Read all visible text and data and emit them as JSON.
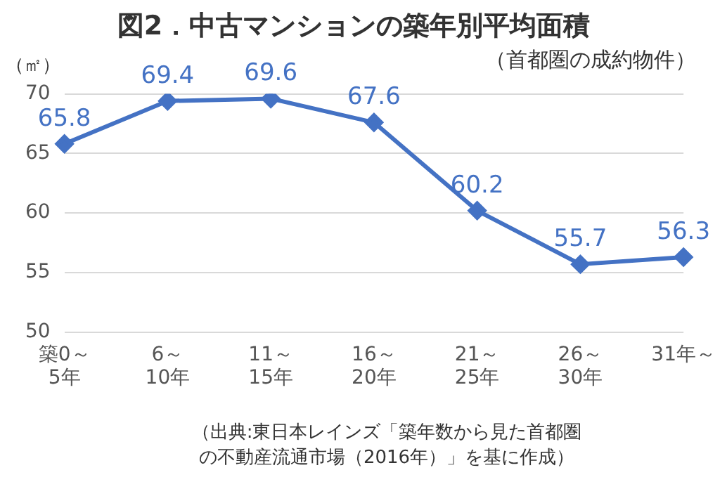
{
  "chart_data": {
    "type": "line",
    "title": "図2．中古マンションの築年別平均面積",
    "subtitle": "（首都圏の成約物件）",
    "ylabel": "（㎡）",
    "categories": [
      "築0～\n5年",
      "6～\n10年",
      "11～\n15年",
      "16～\n20年",
      "21～\n25年",
      "26～\n30年",
      "31年～"
    ],
    "series": [
      {
        "color": "#4472c4",
        "values": [
          65.8,
          69.4,
          69.6,
          67.6,
          60.2,
          55.7,
          56.3
        ]
      }
    ],
    "ylim": [
      50,
      70
    ],
    "yticks": [
      50,
      55,
      60,
      65,
      70
    ],
    "grid": "y",
    "marker": "diamond",
    "line_style": "solid",
    "data_labels": true,
    "legend": false,
    "annotations": [
      "（出典:東日本レインズ「築年数から見た首都圏の不動産流通市場（2016年）」を基に作成）"
    ]
  }
}
